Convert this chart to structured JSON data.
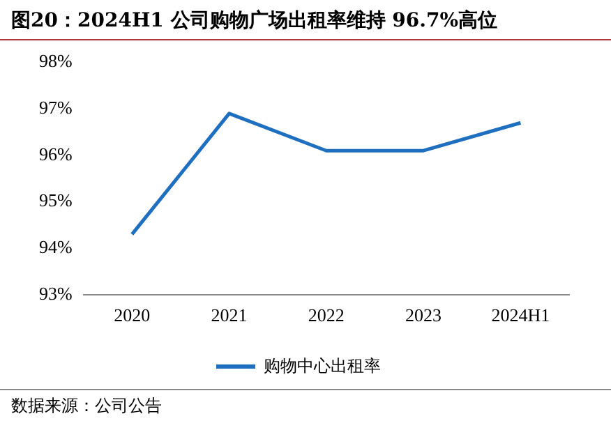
{
  "chart_data": {
    "type": "line",
    "title": "图20：2024H1 公司购物广场出租率维持 96.7%高位",
    "categories": [
      "2020",
      "2021",
      "2022",
      "2023",
      "2024H1"
    ],
    "series": [
      {
        "name": "购物中心出租率",
        "color": "#1f6fc0",
        "values": [
          94.3,
          96.9,
          96.1,
          96.1,
          96.7
        ]
      }
    ],
    "ylim": [
      93,
      98
    ],
    "yticks": [
      {
        "value": 93,
        "label": "93%"
      },
      {
        "value": 94,
        "label": "94%"
      },
      {
        "value": 95,
        "label": "95%"
      },
      {
        "value": 96,
        "label": "96%"
      },
      {
        "value": 97,
        "label": "97%"
      },
      {
        "value": 98,
        "label": "98%"
      }
    ],
    "grid": false,
    "legend": "bottom",
    "marker": "none",
    "line_style": "solid",
    "annotations": [
      "数据来源：公司公告"
    ]
  }
}
